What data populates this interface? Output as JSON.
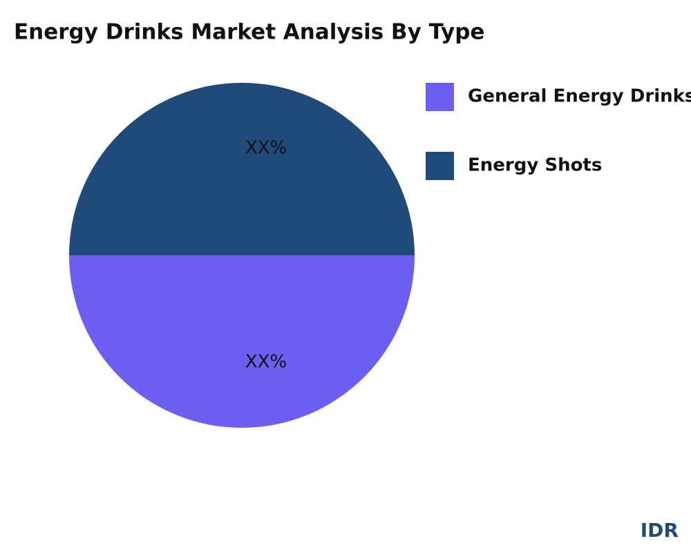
{
  "chart_data": {
    "type": "pie",
    "title": "Energy Drinks  Market Analysis By Type",
    "categories": [
      "General Energy Drinks",
      "Energy Shots"
    ],
    "values": [
      50,
      50
    ],
    "value_labels": [
      "XX%",
      "XX%"
    ],
    "colors": [
      "#6c5ff0",
      "#1f4a7a"
    ],
    "watermark": "IDR"
  }
}
